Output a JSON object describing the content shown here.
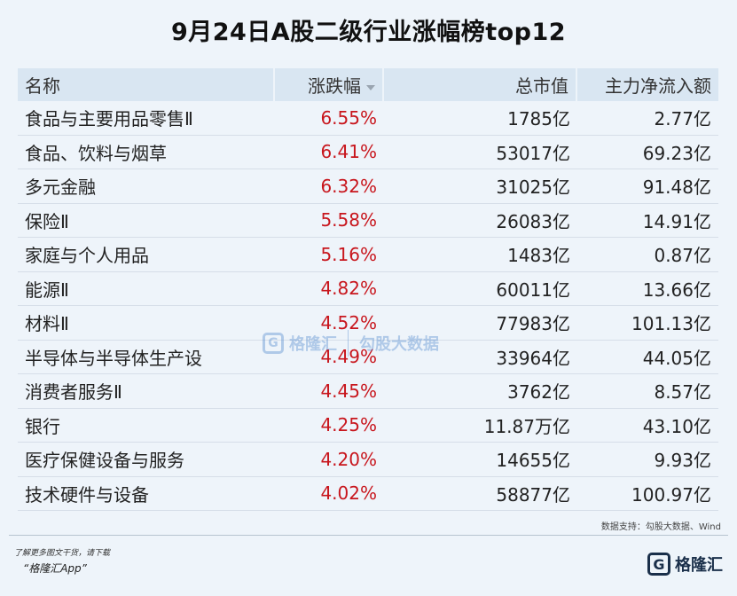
{
  "title": "9月24日A股二级行业涨幅榜top12",
  "table": {
    "headers": {
      "name": "名称",
      "change": "涨跌幅",
      "market_cap": "总市值",
      "net_inflow": "主力净流入额"
    },
    "rows": [
      {
        "name": "食品与主要用品零售Ⅱ",
        "change": "6.55%",
        "market_cap": "1785亿",
        "net_inflow": "2.77亿"
      },
      {
        "name": "食品、饮料与烟草",
        "change": "6.41%",
        "market_cap": "53017亿",
        "net_inflow": "69.23亿"
      },
      {
        "name": "多元金融",
        "change": "6.32%",
        "market_cap": "31025亿",
        "net_inflow": "91.48亿"
      },
      {
        "name": "保险Ⅱ",
        "change": "5.58%",
        "market_cap": "26083亿",
        "net_inflow": "14.91亿"
      },
      {
        "name": "家庭与个人用品",
        "change": "5.16%",
        "market_cap": "1483亿",
        "net_inflow": "0.87亿"
      },
      {
        "name": "能源Ⅱ",
        "change": "4.82%",
        "market_cap": "60011亿",
        "net_inflow": "13.66亿"
      },
      {
        "name": "材料Ⅱ",
        "change": "4.52%",
        "market_cap": "77983亿",
        "net_inflow": "101.13亿"
      },
      {
        "name": "半导体与半导体生产设",
        "change": "4.49%",
        "market_cap": "33964亿",
        "net_inflow": "44.05亿"
      },
      {
        "name": "消费者服务Ⅱ",
        "change": "4.45%",
        "market_cap": "3762亿",
        "net_inflow": "8.57亿"
      },
      {
        "name": "银行",
        "change": "4.25%",
        "market_cap": "11.87万亿",
        "net_inflow": "43.10亿"
      },
      {
        "name": "医疗保健设备与服务",
        "change": "4.20%",
        "market_cap": "14655亿",
        "net_inflow": "9.93亿"
      },
      {
        "name": "技术硬件与设备",
        "change": "4.02%",
        "market_cap": "58877亿",
        "net_inflow": "100.97亿"
      }
    ]
  },
  "source": "数据支持：勾股大数据、Wind",
  "footer": {
    "line1": "了解更多图文干货，请下载",
    "line2": "“格隆汇App”",
    "logo_text": "格隆汇",
    "logo_letter": "G"
  },
  "watermark": {
    "brand": "格隆汇",
    "partner": "勾股大数据",
    "letter": "G"
  },
  "colors": {
    "up": "#c8161d",
    "header_bg": "#d9e6f2",
    "page_bg": "#eef4fa"
  }
}
